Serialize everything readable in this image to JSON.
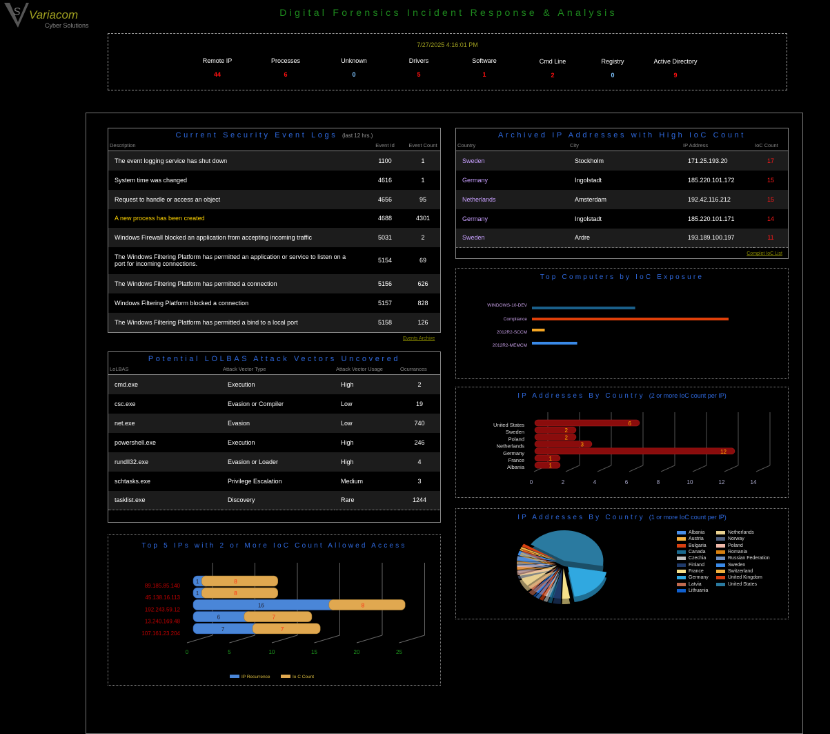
{
  "brand": {
    "name": "Variacom",
    "tagline": "Cyber Solutions"
  },
  "title": "Digital Forensics Incident Response & Analysis",
  "timestamp": "7/27/2025 4:16:01 PM",
  "stats": [
    {
      "label": "Remote  IP",
      "value": "44",
      "color": "#ff1010"
    },
    {
      "label": "Processes",
      "value": "6",
      "color": "#ff1010"
    },
    {
      "label": "Unknown",
      "value": "0",
      "color": "#7fc4ff"
    },
    {
      "label": "Drivers",
      "value": "5",
      "color": "#ff1010"
    },
    {
      "label": "Software",
      "value": "1",
      "color": "#ff1010"
    },
    {
      "label": "Cmd Line",
      "value": "2",
      "color": "#ff1010"
    },
    {
      "label": "Registry",
      "value": "0",
      "color": "#7fc4ff"
    },
    {
      "label": "Active Directory",
      "value": "9",
      "color": "#ff1010"
    }
  ],
  "events": {
    "title": "Current Security Event  Logs",
    "subtitle": "(last 12 hrs.)",
    "headers": [
      "Description",
      "Event Id",
      "Event Count"
    ],
    "link": "Events Archive",
    "rows": [
      [
        "The event logging service has shut down",
        "1100",
        "1"
      ],
      [
        "System time was changed",
        "4616",
        "1"
      ],
      [
        "Request to handle or access an object",
        "4656",
        "95"
      ],
      [
        "A new process has been created",
        "4688",
        "4301"
      ],
      [
        "Windows Firewall blocked an application from accepting incoming traffic",
        "5031",
        "2"
      ],
      [
        "The Windows Filtering Platform has permitted an application or service to listen on a port for incoming connections.",
        "5154",
        "69"
      ],
      [
        "The Windows Filtering Platform has permitted a connection",
        "5156",
        "626"
      ],
      [
        "Windows Filtering Platform blocked a connection",
        "5157",
        "828"
      ],
      [
        "The Windows Filtering Platform has permitted a bind to a local port",
        "5158",
        "126"
      ]
    ]
  },
  "lolbas": {
    "title": "Potential LOLBAS Attack Vectors Uncovered",
    "headers": [
      "LoLBAS",
      "Attack Vector Type",
      "Attack Vector Usage",
      "Ocurrances"
    ],
    "rows": [
      [
        "cmd.exe",
        "Execution",
        "High",
        "2"
      ],
      [
        "csc.exe",
        "Evasion or Compiler",
        "Low",
        "19"
      ],
      [
        "net.exe",
        "Evasion",
        "Low",
        "740"
      ],
      [
        "powershell.exe",
        "Execution",
        "High",
        "246"
      ],
      [
        "rundll32.exe",
        "Evasion or Loader",
        "High",
        "4"
      ],
      [
        "schtasks.exe",
        "Privilege Escalation",
        "Medium",
        "3"
      ],
      [
        "tasklist.exe",
        "Discovery",
        "Rare",
        "1244"
      ]
    ]
  },
  "archived": {
    "title": "Archived IP Addresses with High IoC Count",
    "headers": [
      "Country",
      "City",
      "IP Address",
      "IoC Count"
    ],
    "link": "Complet IoC List",
    "rows": [
      [
        "Sweden",
        "Stockholm",
        "171.25.193.20",
        "17"
      ],
      [
        "Germany",
        "Ingolstadt",
        "185.220.101.172",
        "15"
      ],
      [
        "Netherlands",
        "Amsterdam",
        "192.42.116.212",
        "15"
      ],
      [
        "Germany",
        "Ingolstadt",
        "185.220.101.171",
        "14"
      ],
      [
        "Sweden",
        "Ardre",
        "193.189.100.197",
        "11"
      ]
    ]
  },
  "chart_data": [
    {
      "type": "bar",
      "title": "Top Computers by IoC Exposure",
      "categories": [
        "WINDOWS-10-DEV",
        "Compliance",
        "2012R2-SCCM",
        "2012R2-MEMCM"
      ],
      "values": [
        10.5,
        20,
        1.3,
        4.6
      ],
      "colors": [
        "#1a5f8a",
        "#e0400a",
        "#f5a623",
        "#3a8ae8"
      ]
    },
    {
      "type": "bar",
      "title": "IP Addresses By Country",
      "subtitle": "(2 or more IoC count per IP)",
      "categories": [
        "United States",
        "Sweden",
        "Poland",
        "Netherlands",
        "Germany",
        "France",
        "Albania"
      ],
      "values": [
        6,
        2,
        2,
        3,
        12,
        1,
        1
      ],
      "xlim": [
        0,
        14
      ],
      "xticks": [
        "0",
        "2",
        "4",
        "6",
        "8",
        "10",
        "12",
        "14"
      ]
    },
    {
      "type": "pie",
      "title": "IP Addresses By Country",
      "subtitle": "(1 or more IoC count per IP)",
      "slices": [
        {
          "label": "Albania",
          "value": 1,
          "color": "#4a8fe8"
        },
        {
          "label": "Austria",
          "value": 0.6,
          "color": "#f5b342"
        },
        {
          "label": "Bulgaria",
          "value": 1,
          "color": "#d94010"
        },
        {
          "label": "Canada",
          "value": 1,
          "color": "#1a6a90"
        },
        {
          "label": "Czechia",
          "value": 1,
          "color": "#c0c0c0"
        },
        {
          "label": "Finland",
          "value": 2,
          "color": "#1f3a6a"
        },
        {
          "label": "France",
          "value": 2,
          "color": "#f5e08a"
        },
        {
          "label": "Germany",
          "value": 12,
          "color": "#30a8e0"
        },
        {
          "label": "Latvia",
          "value": 1.5,
          "color": "#c06a50"
        },
        {
          "label": "Lithuania",
          "value": 0.5,
          "color": "#1060d0"
        },
        {
          "label": "Netherlands",
          "value": 4,
          "color": "#e8d090"
        },
        {
          "label": "Norway",
          "value": 1,
          "color": "#506080"
        },
        {
          "label": "Poland",
          "value": 1.5,
          "color": "#f0b8a8"
        },
        {
          "label": "Romania",
          "value": 1,
          "color": "#d88010"
        },
        {
          "label": "Russian Federation",
          "value": 1.5,
          "color": "#7090c0"
        },
        {
          "label": "Sweden",
          "value": 1.5,
          "color": "#3a8ae8"
        },
        {
          "label": "Switzerland",
          "value": 0.5,
          "color": "#f0b040"
        },
        {
          "label": "United Kingdom",
          "value": 1,
          "color": "#d84010"
        },
        {
          "label": "United States",
          "value": 27,
          "color": "#2a7aa0"
        }
      ]
    },
    {
      "type": "bar",
      "title": "Top 5 IPs with 2 or More IoC Count Allowed Access",
      "categories": [
        "89.185.85.140",
        "45.138.16.113",
        "192.243.59.12",
        "13.240.169.48",
        "107.161.23.204"
      ],
      "series": [
        {
          "name": "IP Recurrence",
          "values": [
            1,
            1,
            16,
            6,
            7
          ],
          "color": "#4a86d8"
        },
        {
          "name": "Io C Count",
          "values": [
            8,
            8,
            8,
            7,
            7
          ],
          "color": "#e0a850"
        }
      ],
      "xlim": [
        0,
        25
      ],
      "xticks": [
        "0",
        "5",
        "10",
        "15",
        "20",
        "25"
      ]
    }
  ]
}
